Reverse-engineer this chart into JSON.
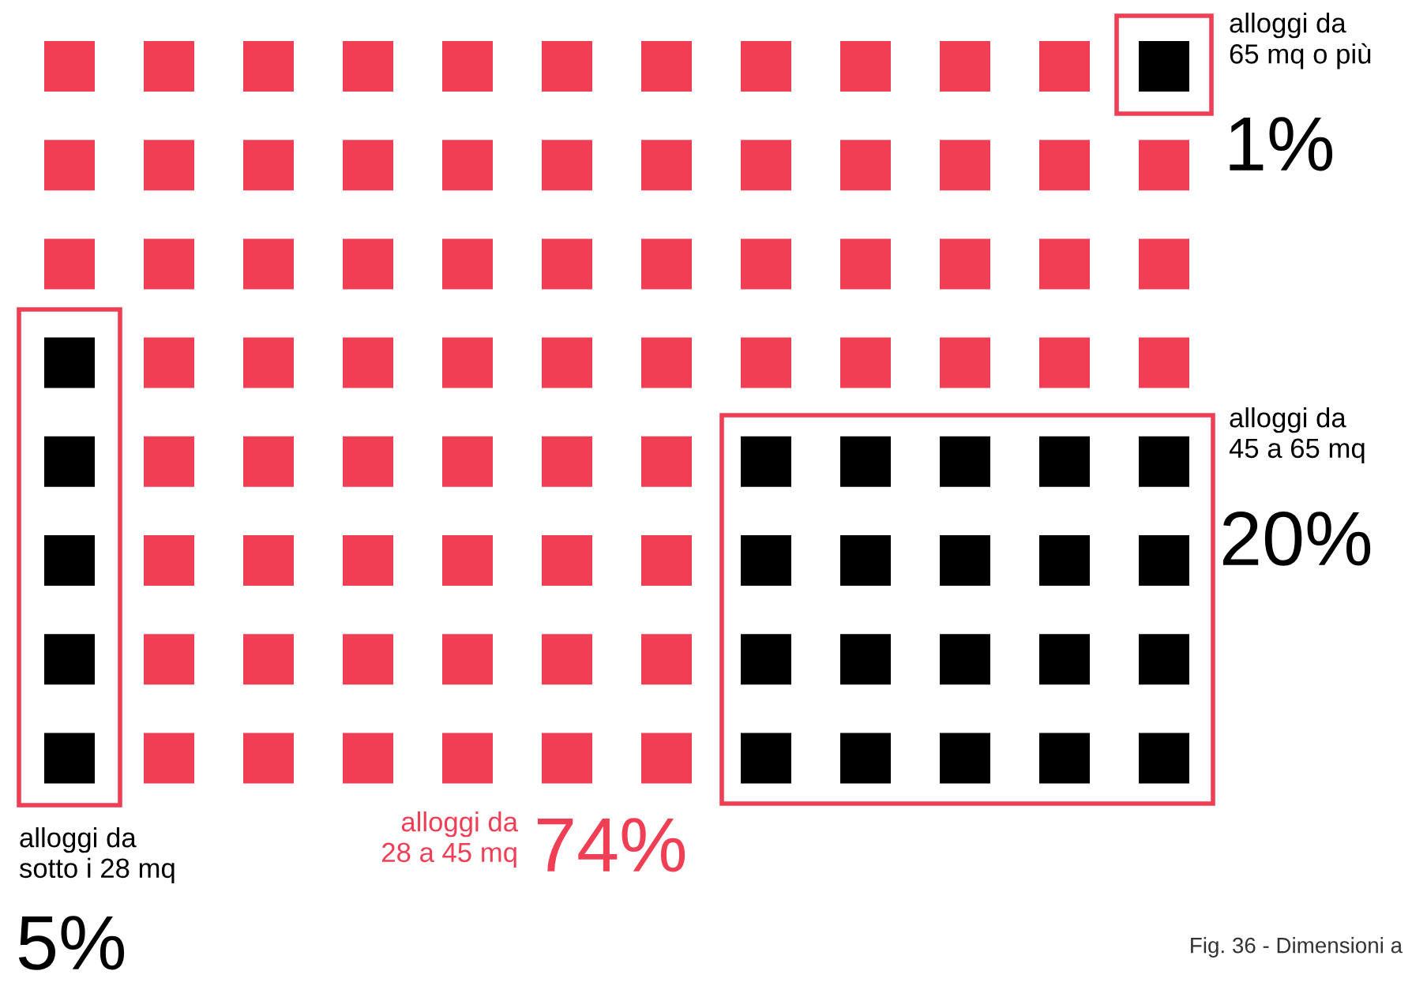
{
  "chart_data": {
    "type": "other",
    "categories": [
      "alloggi da\n65 mq o più",
      "alloggi da\nsotto i 28 mq",
      "alloggi da\n45 a 65 mq",
      "alloggi da\n28 a 45 mq"
    ],
    "values": [
      1,
      5,
      20,
      74
    ],
    "value_labels": [
      "1%",
      "5%",
      "20%",
      "74%"
    ],
    "colors": [
      "#000000",
      "#000000",
      "#000000",
      "#f03e55"
    ],
    "annotations": [
      "Fig. 36 - Dimensioni a"
    ]
  }
}
